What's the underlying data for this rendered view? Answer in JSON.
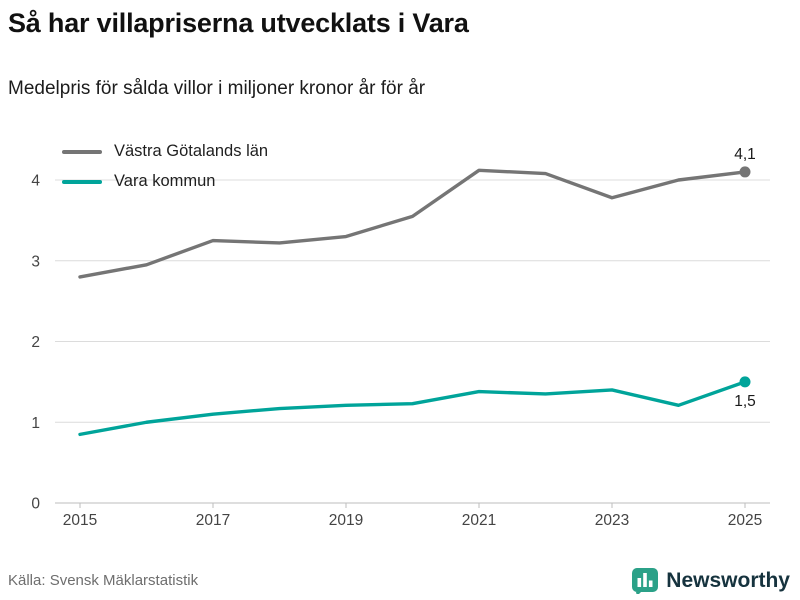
{
  "header": {
    "title": "Så har villapriserna utvecklats i Vara",
    "subtitle": "Medelpris för sålda villor i miljoner kronor år för år"
  },
  "footer": {
    "source": "Källa: Svensk Mäklarstatistik",
    "brand": "Newsworthy"
  },
  "colors": {
    "series_gray": "#757575",
    "series_teal": "#00a49a",
    "grid": "#dcdcdc",
    "axis": "#bdbdbd",
    "tick_text": "#444444",
    "brand_teal": "#2ba188",
    "brand_navy": "#16333e"
  },
  "chart_data": {
    "type": "line",
    "title": "Så har villapriserna utvecklats i Vara",
    "subtitle": "Medelpris för sålda villor i miljoner kronor år för år",
    "x": [
      2015,
      2016,
      2017,
      2018,
      2019,
      2020,
      2021,
      2022,
      2023,
      2024,
      2025
    ],
    "series": [
      {
        "name": "Västra Götalands län",
        "color": "#757575",
        "values": [
          2.8,
          2.95,
          3.25,
          3.22,
          3.3,
          3.55,
          4.12,
          4.08,
          3.78,
          4.0,
          4.1
        ],
        "end_label": "4,1"
      },
      {
        "name": "Vara kommun",
        "color": "#00a49a",
        "values": [
          0.85,
          1.0,
          1.1,
          1.17,
          1.21,
          1.23,
          1.38,
          1.35,
          1.4,
          1.21,
          1.5
        ],
        "end_label": "1,5"
      }
    ],
    "xticks": [
      2015,
      2017,
      2019,
      2021,
      2023,
      2025
    ],
    "yticks": [
      0,
      1,
      2,
      3,
      4
    ],
    "ylim": [
      0,
      4.5
    ],
    "xlabel": "",
    "ylabel": "",
    "grid": true,
    "legend_position": "top-left"
  }
}
